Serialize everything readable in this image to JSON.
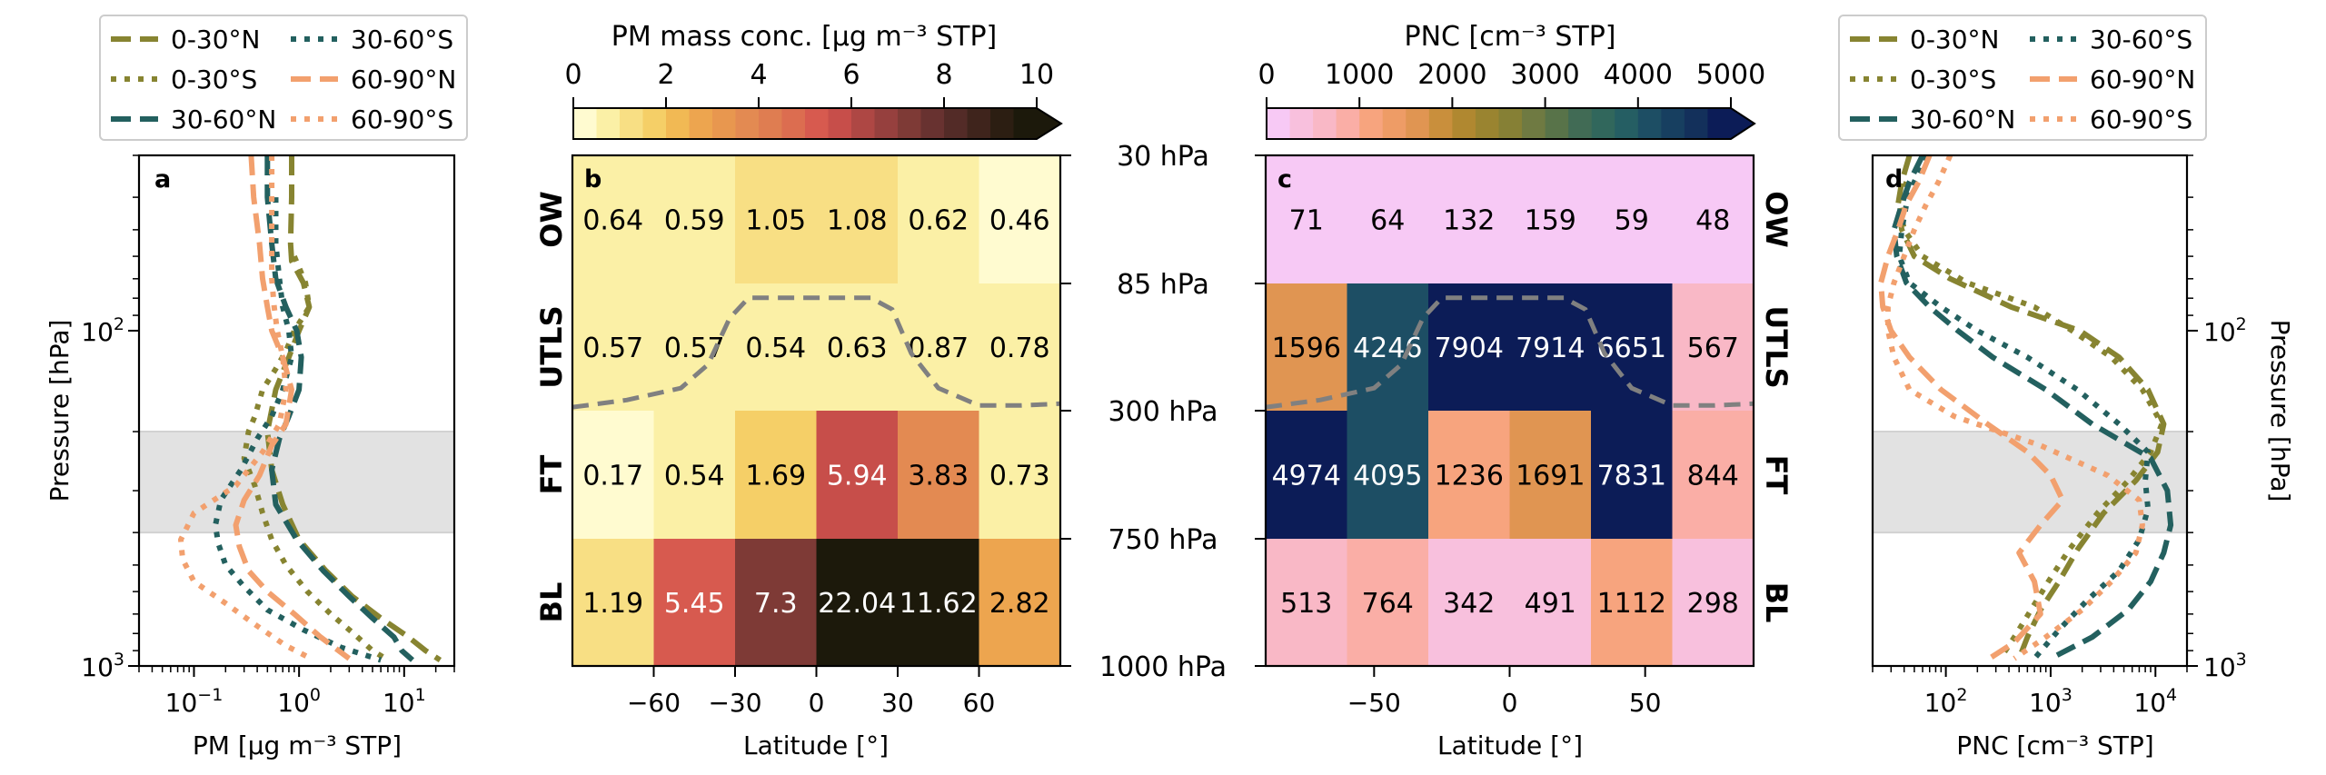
{
  "chart_data": [
    {
      "panel": "a",
      "type": "line",
      "panel_label": "a",
      "xlabel": "PM [μg m⁻³ STP]",
      "ylabel": "Pressure [hPa]",
      "xscale": "log",
      "yscale": "log",
      "xlim": [
        0.03,
        30
      ],
      "ylim": [
        1000,
        30
      ],
      "xticks": [
        {
          "value": 0.1,
          "base": "10",
          "exp": "−1"
        },
        {
          "value": 1,
          "base": "10",
          "exp": "0"
        },
        {
          "value": 10,
          "base": "10",
          "exp": "1"
        }
      ],
      "yticks": [
        {
          "value": 100,
          "base": "10",
          "exp": "2"
        },
        {
          "value": 1000,
          "base": "10",
          "exp": "3"
        }
      ],
      "shaded_band_hPa": [
        200,
        400
      ],
      "legend": {
        "placement": "top, above panel",
        "columns": 2
      },
      "series": [
        {
          "name": "0-30°N",
          "color": "#878431",
          "style": "dashed",
          "p": [
            30,
            40,
            55,
            62,
            72,
            85,
            100,
            120,
            150,
            200,
            260,
            330,
            420,
            520,
            620,
            720,
            820,
            900,
            960
          ],
          "v": [
            0.85,
            0.85,
            0.83,
            0.85,
            1.1,
            1.25,
            1.0,
            0.8,
            0.6,
            0.5,
            0.55,
            0.7,
            1.0,
            1.8,
            3.2,
            6.0,
            11,
            16,
            22
          ]
        },
        {
          "name": "0-30°S",
          "color": "#878431",
          "style": "dotted",
          "p": [
            60,
            72,
            85,
            100,
            115,
            130,
            150,
            180,
            200,
            240,
            290,
            350,
            420,
            500,
            600,
            700,
            800,
            900,
            960
          ],
          "v": [
            0.9,
            1.15,
            1.25,
            0.9,
            0.75,
            0.6,
            0.45,
            0.38,
            0.33,
            0.3,
            0.38,
            0.45,
            0.55,
            0.75,
            1.2,
            2.0,
            3.3,
            5.0,
            7.0
          ]
        },
        {
          "name": "30-60°N",
          "color": "#23605f",
          "style": "dashed",
          "p": [
            30,
            40,
            55,
            70,
            85,
            100,
            120,
            150,
            180,
            210,
            260,
            330,
            420,
            520,
            620,
            720,
            820,
            900,
            960
          ],
          "v": [
            0.5,
            0.5,
            0.55,
            0.6,
            0.75,
            0.95,
            1.05,
            1.0,
            0.8,
            0.65,
            0.55,
            0.6,
            0.95,
            1.7,
            3.0,
            5.0,
            8.0,
            9.5,
            12
          ]
        },
        {
          "name": "30-60°S",
          "color": "#23605f",
          "style": "dotted",
          "p": [
            40,
            55,
            70,
            85,
            100,
            120,
            150,
            180,
            210,
            260,
            320,
            380,
            430,
            500,
            580,
            680,
            780,
            880,
            960
          ],
          "v": [
            0.6,
            0.6,
            0.65,
            0.7,
            0.8,
            0.85,
            0.7,
            0.55,
            0.4,
            0.28,
            0.18,
            0.16,
            0.17,
            0.2,
            0.3,
            0.5,
            1.1,
            2.5,
            6.0
          ]
        },
        {
          "name": "60-90°N",
          "color": "#f2a06e",
          "style": "dashed",
          "p": [
            30,
            40,
            55,
            70,
            85,
            100,
            120,
            150,
            190,
            220,
            270,
            320,
            380,
            440,
            520,
            600,
            700,
            820,
            950
          ],
          "v": [
            0.35,
            0.37,
            0.42,
            0.45,
            0.5,
            0.55,
            0.7,
            0.85,
            0.75,
            0.55,
            0.42,
            0.3,
            0.25,
            0.27,
            0.33,
            0.5,
            0.9,
            1.6,
            3.0
          ]
        },
        {
          "name": "60-90°S",
          "color": "#f2a06e",
          "style": "dotted",
          "p": [
            30,
            40,
            55,
            70,
            85,
            100,
            120,
            150,
            190,
            230,
            290,
            350,
            420,
            480,
            560,
            650,
            760,
            870,
            950
          ],
          "v": [
            0.55,
            0.55,
            0.55,
            0.55,
            0.58,
            0.62,
            0.7,
            0.75,
            0.65,
            0.45,
            0.25,
            0.1,
            0.075,
            0.078,
            0.1,
            0.2,
            0.4,
            0.75,
            1.3
          ]
        }
      ]
    },
    {
      "panel": "b",
      "type": "heatmap",
      "panel_label": "b",
      "colorbar_label": "PM mass conc. [μg m⁻³ STP]",
      "colorbar_ticks": [
        "0",
        "2",
        "4",
        "6",
        "8",
        "10"
      ],
      "colorbar_range": [
        0,
        10
      ],
      "colorbar_extend": "max",
      "colormap": [
        "#fffbd0",
        "#fbf0a6",
        "#f8df84",
        "#f5cf67",
        "#f1b954",
        "#eda54f",
        "#e8974f",
        "#e38a52",
        "#df7d51",
        "#dc6d50",
        "#d75a4f",
        "#c74e4a",
        "#ae4744",
        "#96403e",
        "#7e3a36",
        "#683230",
        "#532b27",
        "#3f241c",
        "#2c1e12",
        "#1c190b"
      ],
      "xlabel": "Latitude [°]",
      "xticks": [
        "−60",
        "−30",
        "0",
        "30",
        "60"
      ],
      "xtick_values": [
        -60,
        -30,
        0,
        30,
        60
      ],
      "xlim": [
        -90,
        90
      ],
      "row_labels": [
        "OW",
        "UTLS",
        "FT",
        "BL"
      ],
      "lat_bins": [
        -90,
        -60,
        -30,
        0,
        30,
        60,
        90
      ],
      "values": [
        [
          "0.64",
          "0.59",
          "1.05",
          "1.08",
          "0.62",
          "0.46"
        ],
        [
          "0.57",
          "0.57",
          "0.54",
          "0.63",
          "0.87",
          "0.78"
        ],
        [
          "0.17",
          "0.54",
          "1.69",
          "5.94",
          "3.83",
          "0.73"
        ],
        [
          "1.19",
          "5.45",
          "7.3",
          "22.04",
          "11.62",
          "2.82"
        ]
      ],
      "tropopause_line": {
        "lat": [
          -90,
          -70,
          -50,
          -40,
          -32,
          -25,
          0,
          20,
          28,
          35,
          45,
          60,
          75,
          90
        ],
        "hPa": [
          290,
          270,
          240,
          190,
          120,
          98,
          98,
          98,
          110,
          170,
          240,
          285,
          285,
          280
        ]
      }
    },
    {
      "panel": "pressure-levels",
      "type": "table",
      "labels": [
        "30 hPa",
        "85 hPa",
        "300 hPa",
        "750 hPa",
        "1000 hPa"
      ]
    },
    {
      "panel": "c",
      "type": "heatmap",
      "panel_label": "c",
      "colorbar_label": "PNC [cm⁻³ STP]",
      "colorbar_ticks": [
        "0",
        "1000",
        "2000",
        "3000",
        "4000",
        "5000"
      ],
      "colorbar_range": [
        0,
        5000
      ],
      "colorbar_extend": "max",
      "colormap": [
        "#f7c9f5",
        "#f8c0dd",
        "#f9b8c6",
        "#faaea6",
        "#f7a47e",
        "#ee9c66",
        "#e09552",
        "#c98f3c",
        "#b08830",
        "#9a8430",
        "#868035",
        "#6f7a42",
        "#587349",
        "#416b55",
        "#31675c",
        "#255e63",
        "#1d4e64",
        "#173f60",
        "#13305b",
        "#0c1c57"
      ],
      "xlabel": "Latitude [°]",
      "xticks": [
        "−50",
        "0",
        "50"
      ],
      "xtick_values": [
        -50,
        0,
        50
      ],
      "xlim": [
        -90,
        90
      ],
      "row_labels": [
        "OW",
        "UTLS",
        "FT",
        "BL"
      ],
      "lat_bins": [
        -90,
        -60,
        -30,
        0,
        30,
        60,
        90
      ],
      "values": [
        [
          "71",
          "64",
          "132",
          "159",
          "59",
          "48"
        ],
        [
          "1596",
          "4246",
          "7904",
          "7914",
          "6651",
          "567"
        ],
        [
          "4974",
          "4095",
          "1236",
          "1691",
          "7831",
          "844"
        ],
        [
          "513",
          "764",
          "342",
          "491",
          "1112",
          "298"
        ]
      ],
      "tropopause_line": {
        "lat": [
          -90,
          -70,
          -50,
          -40,
          -32,
          -25,
          0,
          20,
          28,
          35,
          45,
          60,
          75,
          90
        ],
        "hPa": [
          290,
          270,
          240,
          190,
          120,
          98,
          98,
          98,
          110,
          170,
          240,
          285,
          285,
          280
        ]
      }
    },
    {
      "panel": "d",
      "type": "line",
      "panel_label": "d",
      "xlabel": "PNC [cm⁻³ STP]",
      "ylabel": "Pressure [hPa]",
      "xscale": "log",
      "yscale": "log",
      "xlim": [
        20,
        20000
      ],
      "ylim": [
        1000,
        30
      ],
      "xticks": [
        {
          "value": 100,
          "base": "10",
          "exp": "2"
        },
        {
          "value": 1000,
          "base": "10",
          "exp": "3"
        },
        {
          "value": 10000,
          "base": "10",
          "exp": "4"
        }
      ],
      "yticks": [
        {
          "value": 100,
          "base": "10",
          "exp": "2"
        },
        {
          "value": 1000,
          "base": "10",
          "exp": "3"
        }
      ],
      "shaded_band_hPa": [
        200,
        400
      ],
      "legend": {
        "placement": "top, above panel",
        "columns": 2
      },
      "series": [
        {
          "name": "0-30°N",
          "color": "#878431",
          "style": "dashed",
          "p": [
            30,
            36,
            42,
            50,
            60,
            70,
            85,
            100,
            120,
            150,
            190,
            230,
            280,
            350,
            450,
            560,
            680,
            820,
            950
          ],
          "v": [
            45,
            38,
            35,
            38,
            50,
            110,
            420,
            1900,
            4500,
            8500,
            12000,
            10500,
            6500,
            3200,
            1800,
            1200,
            800,
            600,
            500
          ]
        },
        {
          "name": "0-30°S",
          "color": "#878431",
          "style": "dotted",
          "p": [
            36,
            42,
            50,
            60,
            72,
            85,
            100,
            120,
            150,
            190,
            230,
            280,
            350,
            450,
            560,
            680,
            820,
            950
          ],
          "v": [
            42,
            36,
            40,
            60,
            160,
            700,
            1600,
            3800,
            7500,
            11500,
            9000,
            5500,
            2800,
            1500,
            950,
            650,
            450,
            330
          ]
        },
        {
          "name": "30-60°N",
          "color": "#23605f",
          "style": "dashed",
          "p": [
            30,
            36,
            42,
            50,
            60,
            72,
            85,
            100,
            120,
            150,
            190,
            240,
            300,
            380,
            460,
            560,
            680,
            820,
            950
          ],
          "v": [
            60,
            45,
            38,
            32,
            34,
            42,
            70,
            130,
            280,
            900,
            2500,
            9000,
            13000,
            14000,
            12000,
            9000,
            5500,
            2500,
            1000
          ]
        },
        {
          "name": "30-60°S",
          "color": "#23605f",
          "style": "dotted",
          "p": [
            30,
            36,
            42,
            50,
            60,
            72,
            85,
            100,
            120,
            150,
            190,
            230,
            280,
            340,
            420,
            520,
            640,
            780,
            950
          ],
          "v": [
            65,
            50,
            42,
            38,
            36,
            45,
            90,
            200,
            600,
            1800,
            4500,
            8500,
            8000,
            8500,
            7000,
            4500,
            2200,
            1200,
            700
          ]
        },
        {
          "name": "60-90°N",
          "color": "#f2a06e",
          "style": "dashed",
          "p": [
            30,
            36,
            42,
            50,
            60,
            72,
            85,
            100,
            120,
            150,
            190,
            230,
            270,
            320,
            380,
            460,
            560,
            700,
            850,
            950
          ],
          "v": [
            70,
            55,
            42,
            35,
            28,
            24,
            25,
            30,
            45,
            90,
            250,
            600,
            1000,
            1300,
            800,
            500,
            700,
            800,
            450,
            260
          ]
        },
        {
          "name": "60-90°S",
          "color": "#f2a06e",
          "style": "dotted",
          "p": [
            30,
            36,
            42,
            50,
            60,
            72,
            85,
            100,
            120,
            150,
            180,
            220,
            270,
            320,
            380,
            460,
            560,
            680,
            820,
            950
          ],
          "v": [
            110,
            85,
            65,
            50,
            40,
            32,
            28,
            28,
            32,
            45,
            120,
            800,
            3500,
            7000,
            7500,
            6500,
            3800,
            2000,
            900,
            450
          ]
        }
      ]
    }
  ]
}
